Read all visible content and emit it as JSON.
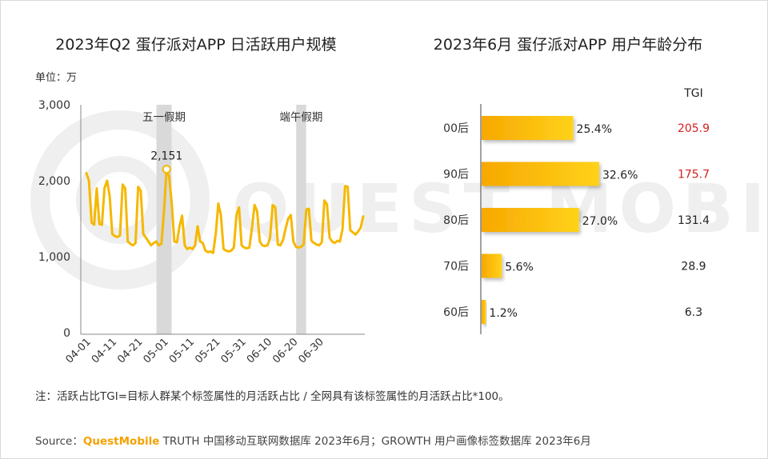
{
  "left_chart_title": "2023年Q2 蛋仔派对APP 日活跃用户规模",
  "right_chart_title": "2023年6月 蛋仔派对APP 用户年龄分布",
  "unit_label": "单位：万",
  "tgi_header": "TGI",
  "holiday_labels": [
    "五一假期",
    "端午假期"
  ],
  "peak_label": "2,151",
  "note": "注：活跃占比TGI=目标人群某个标签属性的月活跃占比 / 全网具有该标签属性的月活跃占比*100。",
  "source": {
    "prefix": "Source：",
    "brand": "QuestMobile",
    "rest": " TRUTH 中国移动互联网数据库 2023年6月；GROWTH 用户画像标签数据库 2023年6月"
  },
  "watermark": "QUEST MOBILE",
  "colors": {
    "line": "#f5b800",
    "bar": "#fbbf0a",
    "tgi_high": "#d42020",
    "tgi_normal": "#222222",
    "band": "#d9d9d9"
  },
  "chart_data": [
    {
      "type": "line",
      "title": "2023年Q2 蛋仔派对APP 日活跃用户规模",
      "ylabel": "单位：万",
      "ylim": [
        0,
        3000
      ],
      "yticks": [
        "3,000",
        "2,000",
        "1,000",
        "0"
      ],
      "xticks": [
        "04-01",
        "04-11",
        "04-21",
        "05-01",
        "05-11",
        "05-21",
        "05-31",
        "06-10",
        "06-20",
        "06-30"
      ],
      "series": [
        {
          "values": [
            2100,
            2000,
            1450,
            1420,
            1900,
            1430,
            1420,
            1900,
            2000,
            1800,
            1300,
            1270,
            1260,
            1280,
            1950,
            1900,
            1200,
            1170,
            1150,
            1180,
            1920,
            1870,
            1300,
            1250,
            1200,
            1150,
            1180,
            1200,
            1150,
            1170,
            1600,
            2151,
            2050,
            1700,
            1200,
            1190,
            1400,
            1540,
            1150,
            1100,
            1120,
            1100,
            1150,
            1400,
            1200,
            1180,
            1080,
            1060,
            1070,
            1050,
            1300,
            1700,
            1550,
            1100,
            1080,
            1070,
            1080,
            1120,
            1550,
            1650,
            1150,
            1120,
            1110,
            1120,
            1380,
            1680,
            1600,
            1200,
            1150,
            1140,
            1150,
            1250,
            1680,
            1650,
            1160,
            1150,
            1220,
            1370,
            1500,
            1550,
            1200,
            1130,
            1120,
            1130,
            1160,
            1620,
            1630,
            1210,
            1180,
            1160,
            1150,
            1190,
            1740,
            1690,
            1250,
            1200,
            1180,
            1210,
            1200,
            1360,
            1930,
            1920,
            1350,
            1320,
            1290,
            1330,
            1380,
            1530
          ]
        }
      ],
      "annotations": [
        {
          "label": "五一假期",
          "from": "04-29",
          "to": "05-03"
        },
        {
          "label": "端午假期",
          "from": "06-22",
          "to": "06-24"
        }
      ],
      "peak": {
        "value": 2151,
        "label": "2,151"
      }
    },
    {
      "type": "bar",
      "title": "2023年6月 蛋仔派对APP 用户年龄分布",
      "categories": [
        "00后",
        "90后",
        "80后",
        "70后",
        "60后"
      ],
      "values": [
        25.4,
        32.6,
        27.0,
        5.6,
        1.2
      ],
      "value_labels": [
        "25.4%",
        "32.6%",
        "27.0%",
        "5.6%",
        "1.2%"
      ],
      "tgi": [
        "205.9",
        "175.7",
        "131.4",
        "28.9",
        "6.3"
      ],
      "tgi_highlight": [
        true,
        true,
        false,
        false,
        false
      ]
    }
  ]
}
